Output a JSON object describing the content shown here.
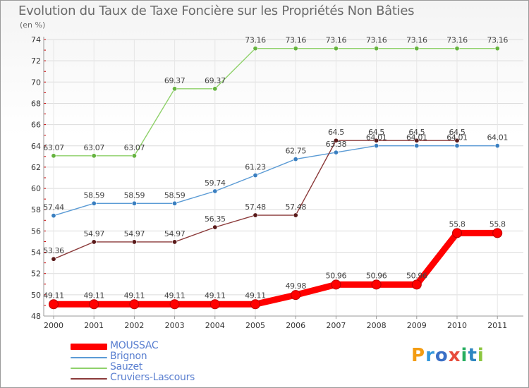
{
  "title": "Evolution du Taux de Taxe Foncière sur les Propriétés Non Bâties",
  "subtitle": "(en %)",
  "logo": {
    "text": "Proxiti",
    "letters": [
      {
        "ch": "P",
        "color": "#f39c12"
      },
      {
        "ch": "r",
        "color": "#3498db"
      },
      {
        "ch": "o",
        "color": "#3a6fc6"
      },
      {
        "ch": "x",
        "color": "#e74c3c"
      },
      {
        "ch": "i",
        "color": "#27ae60"
      },
      {
        "ch": "t",
        "color": "#2e86c1"
      },
      {
        "ch": "i",
        "color": "#8cc63f"
      }
    ]
  },
  "chart_data": {
    "type": "line",
    "title": "Evolution du Taux de Taxe Foncière sur les Propriétés Non Bâties",
    "ylabel": "(en %)",
    "xlabel": "",
    "x": [
      "2000",
      "2001",
      "2002",
      "2003",
      "2004",
      "2005",
      "2006",
      "2007",
      "2008",
      "2009",
      "2010",
      "2011"
    ],
    "ylim": [
      48,
      74
    ],
    "yticks": [
      48,
      50,
      52,
      54,
      56,
      58,
      60,
      62,
      64,
      66,
      68,
      70,
      72,
      74
    ],
    "grid": true,
    "legend_position": "bottom-left",
    "series": [
      {
        "name": "MOUSSAC",
        "color": "#ff0000",
        "highlight": true,
        "values": [
          49.11,
          49.11,
          49.11,
          49.11,
          49.11,
          49.11,
          49.98,
          50.96,
          50.96,
          50.96,
          55.8,
          55.8
        ],
        "labels": [
          "49.11",
          "49.11",
          "49.11",
          "49.11",
          "49.11",
          "49.11",
          "49.98",
          "50.96",
          "50.96",
          "50.96",
          "55.8",
          "55.8"
        ]
      },
      {
        "name": "Brignon",
        "color": "#5b9bd5",
        "point_color": "#3a7fc0",
        "values": [
          57.44,
          58.59,
          58.59,
          58.59,
          59.74,
          61.23,
          62.75,
          63.38,
          64.01,
          64.01,
          64.01,
          64.01
        ],
        "labels": [
          "57.44",
          "58.59",
          "58.59",
          "58.59",
          "59.74",
          "61.23",
          "62.75",
          "63.38",
          "64.01",
          "64.01",
          "64.01",
          "64.01"
        ]
      },
      {
        "name": "Sauzet",
        "color": "#8fd16a",
        "point_color": "#66b340",
        "values": [
          63.07,
          63.07,
          63.07,
          69.37,
          69.37,
          73.16,
          73.16,
          73.16,
          73.16,
          73.16,
          73.16,
          73.16
        ],
        "labels": [
          "63.07",
          "63.07",
          "63.07",
          "69.37",
          "69.37",
          "73.16",
          "73.16",
          "73.16",
          "73.16",
          "73.16",
          "73.16",
          "73.16"
        ]
      },
      {
        "name": "Cruviers-Lascours",
        "color": "#8b3a3a",
        "point_color": "#5a1a1a",
        "values": [
          53.36,
          54.97,
          54.97,
          54.97,
          56.35,
          57.48,
          57.48,
          64.5,
          64.5,
          64.5,
          64.5,
          null
        ],
        "labels": [
          "53.36",
          "54.97",
          "54.97",
          "54.97",
          "56.35",
          "57.48",
          "57.48",
          "64.5",
          "64.5",
          "64.5",
          "64.5",
          null
        ]
      }
    ]
  }
}
